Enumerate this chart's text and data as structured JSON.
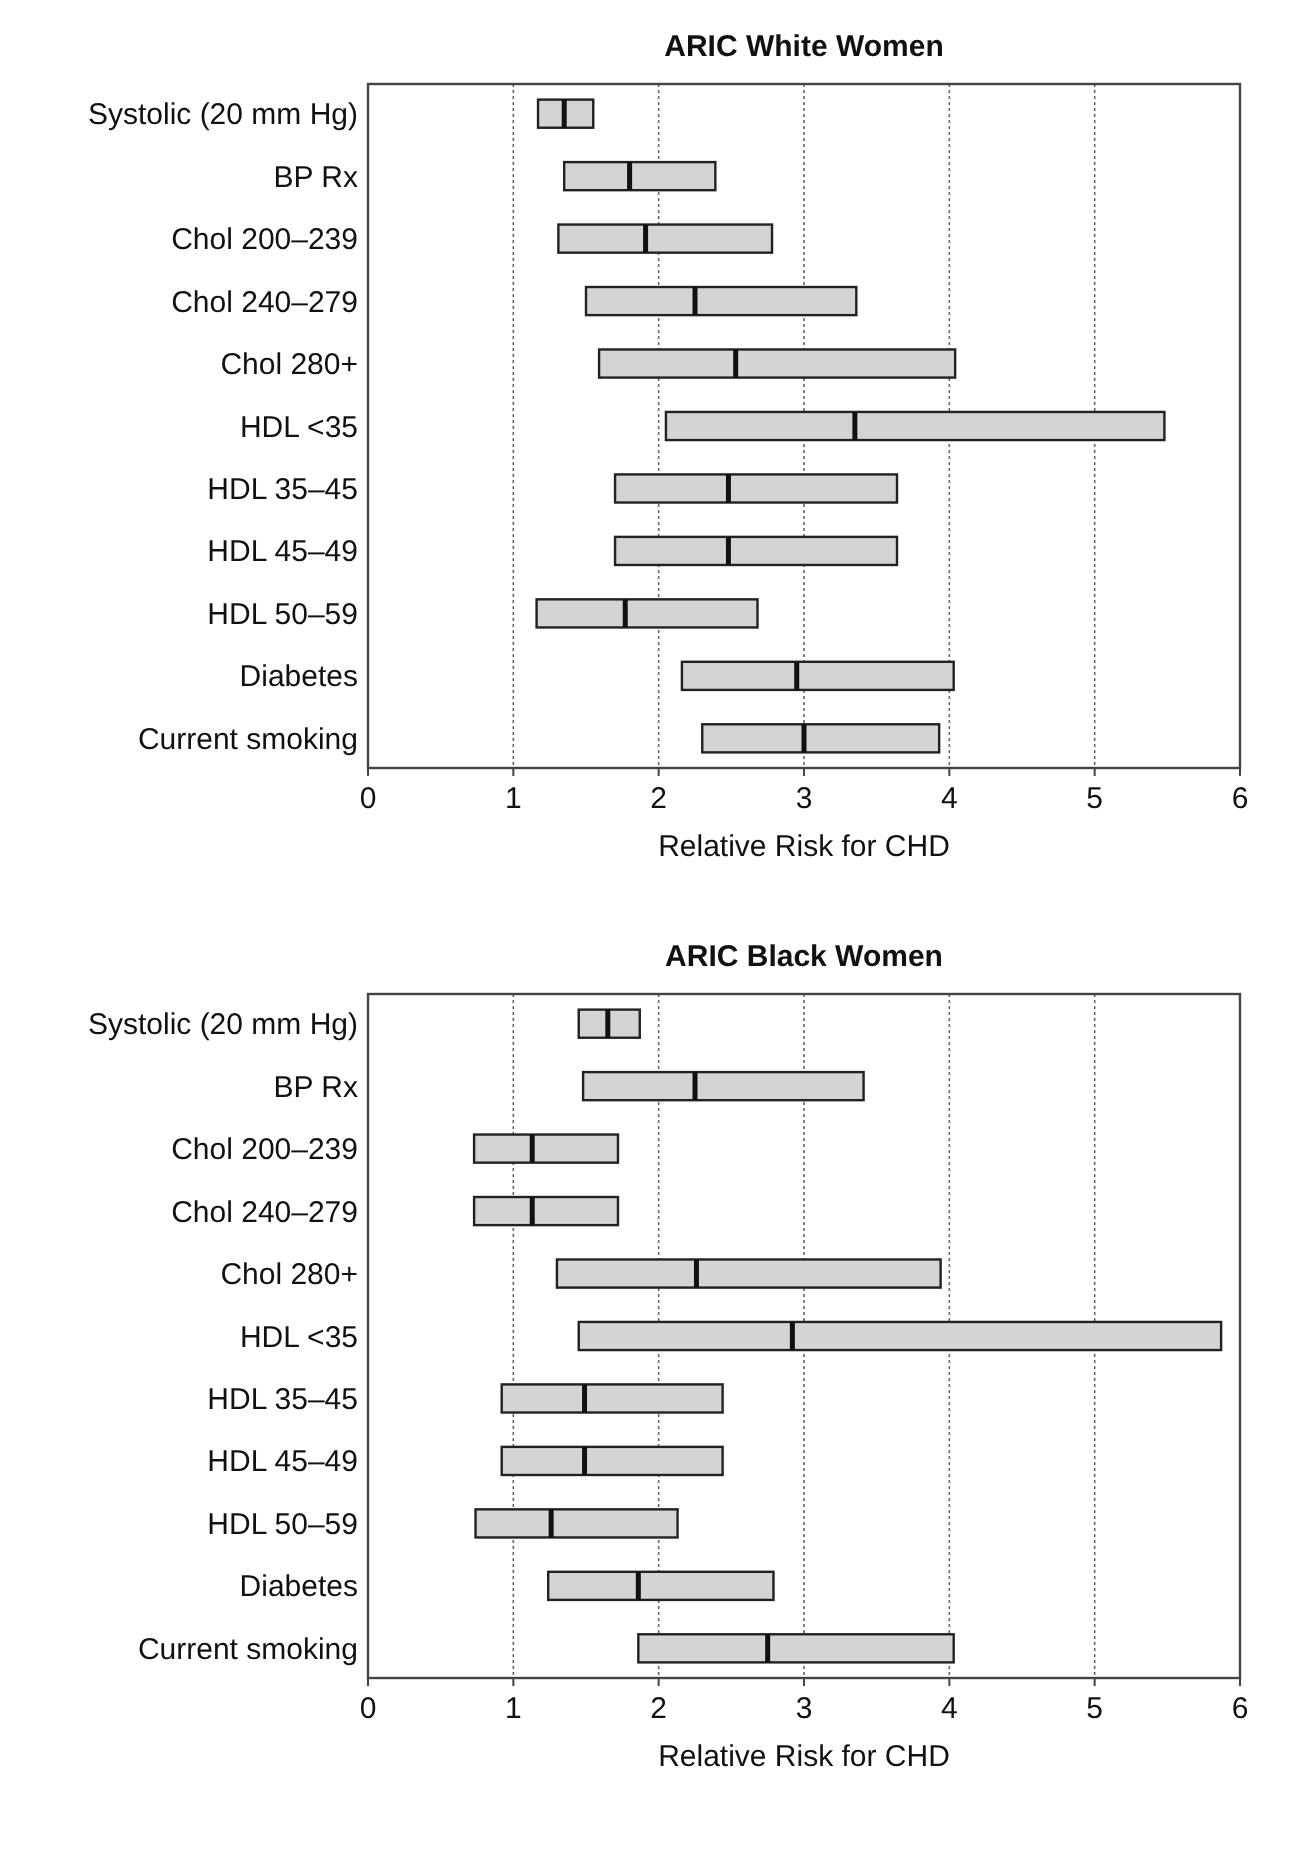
{
  "chart_data": [
    {
      "type": "box",
      "orientation": "horizontal",
      "title": "ARIC White Women",
      "xlabel": "Relative Risk for CHD",
      "categories": [
        "Systolic (20 mm Hg)",
        "BP Rx",
        "Chol 200–239",
        "Chol 240–279",
        "Chol 280+",
        "HDL <35",
        "HDL 35–45",
        "HDL 45–49",
        "HDL 50–59",
        "Diabetes",
        "Current smoking"
      ],
      "series": [
        {
          "color": "#d4d4d4",
          "boxes": [
            {
              "low": 1.17,
              "q1": 1.17,
              "median": 1.35,
              "q3": 1.55,
              "high": 1.55
            },
            {
              "low": 1.35,
              "q1": 1.35,
              "median": 1.8,
              "q3": 2.39,
              "high": 2.39
            },
            {
              "low": 1.31,
              "q1": 1.31,
              "median": 1.91,
              "q3": 2.78,
              "high": 2.78
            },
            {
              "low": 1.5,
              "q1": 1.5,
              "median": 2.25,
              "q3": 3.36,
              "high": 3.36
            },
            {
              "low": 1.59,
              "q1": 1.59,
              "median": 2.53,
              "q3": 4.04,
              "high": 4.04
            },
            {
              "low": 2.05,
              "q1": 2.05,
              "median": 3.35,
              "q3": 5.48,
              "high": 5.48
            },
            {
              "low": 1.7,
              "q1": 1.7,
              "median": 2.48,
              "q3": 3.64,
              "high": 3.64
            },
            {
              "low": 1.7,
              "q1": 1.7,
              "median": 2.48,
              "q3": 3.64,
              "high": 3.64
            },
            {
              "low": 1.16,
              "q1": 1.16,
              "median": 1.77,
              "q3": 2.68,
              "high": 2.68
            },
            {
              "low": 2.16,
              "q1": 2.16,
              "median": 2.95,
              "q3": 4.03,
              "high": 4.03
            },
            {
              "low": 2.3,
              "q1": 2.3,
              "median": 3.0,
              "q3": 3.93,
              "high": 3.93
            }
          ]
        }
      ],
      "xlim": [
        0,
        6
      ],
      "xticks": [
        0,
        1,
        2,
        3,
        4,
        5,
        6
      ],
      "grid": "x"
    },
    {
      "type": "box",
      "orientation": "horizontal",
      "title": "ARIC Black Women",
      "xlabel": "Relative Risk for CHD",
      "categories": [
        "Systolic (20 mm Hg)",
        "BP Rx",
        "Chol 200–239",
        "Chol 240–279",
        "Chol 280+",
        "HDL <35",
        "HDL 35–45",
        "HDL 45–49",
        "HDL 50–59",
        "Diabetes",
        "Current smoking"
      ],
      "series": [
        {
          "color": "#d4d4d4",
          "boxes": [
            {
              "low": 1.45,
              "q1": 1.45,
              "median": 1.65,
              "q3": 1.87,
              "high": 1.87
            },
            {
              "low": 1.48,
              "q1": 1.48,
              "median": 2.25,
              "q3": 3.41,
              "high": 3.41
            },
            {
              "low": 0.73,
              "q1": 0.73,
              "median": 1.13,
              "q3": 1.72,
              "high": 1.72
            },
            {
              "low": 0.73,
              "q1": 0.73,
              "median": 1.13,
              "q3": 1.72,
              "high": 1.72
            },
            {
              "low": 1.3,
              "q1": 1.3,
              "median": 2.26,
              "q3": 3.94,
              "high": 3.94
            },
            {
              "low": 1.45,
              "q1": 1.45,
              "median": 2.92,
              "q3": 5.87,
              "high": 5.87
            },
            {
              "low": 0.92,
              "q1": 0.92,
              "median": 1.49,
              "q3": 2.44,
              "high": 2.44
            },
            {
              "low": 0.92,
              "q1": 0.92,
              "median": 1.49,
              "q3": 2.44,
              "high": 2.44
            },
            {
              "low": 0.74,
              "q1": 0.74,
              "median": 1.26,
              "q3": 2.13,
              "high": 2.13
            },
            {
              "low": 1.24,
              "q1": 1.24,
              "median": 1.86,
              "q3": 2.79,
              "high": 2.79
            },
            {
              "low": 1.86,
              "q1": 1.86,
              "median": 2.75,
              "q3": 4.03,
              "high": 4.03
            }
          ]
        }
      ],
      "xlim": [
        0,
        6
      ],
      "xticks": [
        0,
        1,
        2,
        3,
        4,
        5,
        6
      ],
      "grid": "x"
    }
  ]
}
